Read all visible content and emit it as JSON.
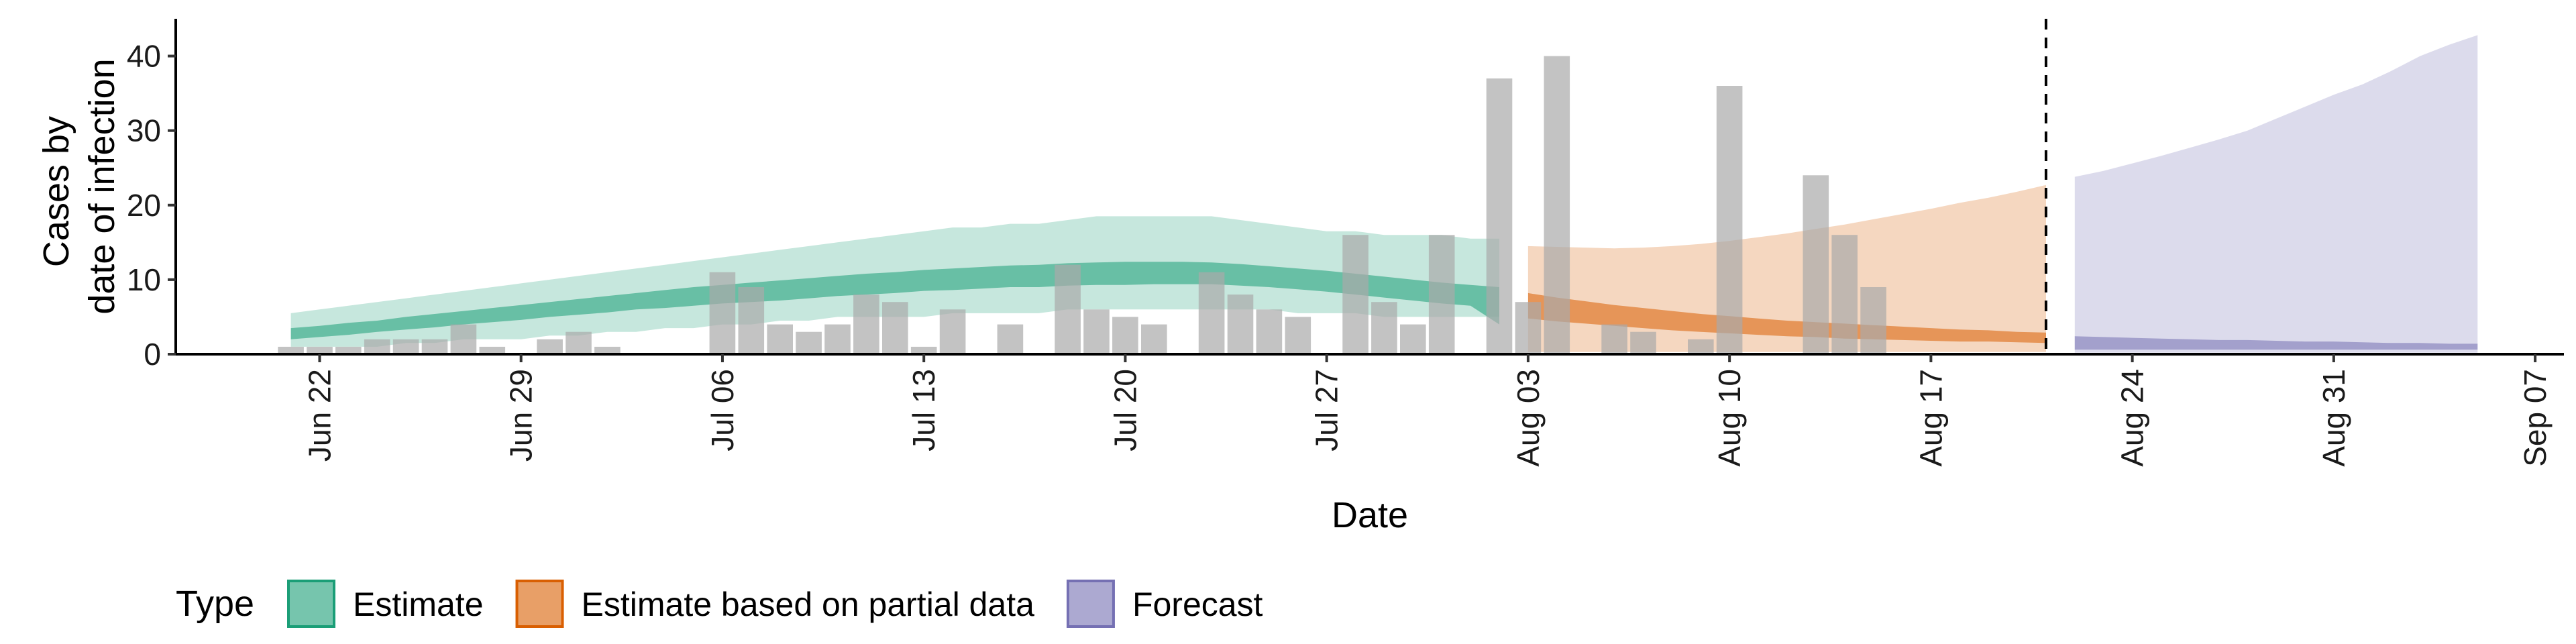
{
  "chart_data": {
    "type": "bar",
    "title": "",
    "xlabel": "Date",
    "ylabel_lines": [
      "Cases by",
      "date of infection"
    ],
    "x_start": "2020-06-17",
    "xlim": [
      "2020-06-17",
      "2020-09-08"
    ],
    "ylim": [
      0,
      45
    ],
    "y_ticks": [
      0,
      10,
      20,
      30,
      40
    ],
    "x_ticks": [
      {
        "date": "2020-06-22",
        "label": "Jun 22"
      },
      {
        "date": "2020-06-29",
        "label": "Jun 29"
      },
      {
        "date": "2020-07-06",
        "label": "Jul 06"
      },
      {
        "date": "2020-07-13",
        "label": "Jul 13"
      },
      {
        "date": "2020-07-20",
        "label": "Jul 20"
      },
      {
        "date": "2020-07-27",
        "label": "Jul 27"
      },
      {
        "date": "2020-08-03",
        "label": "Aug 03"
      },
      {
        "date": "2020-08-10",
        "label": "Aug 10"
      },
      {
        "date": "2020-08-17",
        "label": "Aug 17"
      },
      {
        "date": "2020-08-24",
        "label": "Aug 24"
      },
      {
        "date": "2020-08-31",
        "label": "Aug 31"
      },
      {
        "date": "2020-09-07",
        "label": "Sep 07"
      }
    ],
    "forecast_start": "2020-08-21",
    "reported_cases": {
      "start_date": "2020-06-21",
      "values": [
        1,
        1,
        1,
        2,
        2,
        2,
        4,
        1,
        0,
        2,
        3,
        1,
        0,
        0,
        0,
        11,
        9,
        4,
        3,
        4,
        8,
        7,
        1,
        6,
        0,
        4,
        0,
        12,
        6,
        5,
        4,
        0,
        11,
        8,
        6,
        5,
        0,
        16,
        7,
        4,
        16,
        0,
        37,
        7,
        40,
        0,
        4,
        3,
        0,
        2,
        36,
        0,
        0,
        24,
        16,
        9
      ]
    },
    "series": [
      {
        "name": "Estimate",
        "color": "#1b9e77",
        "start_date": "2020-06-21",
        "lower90": [
          1,
          1,
          1,
          1,
          1.5,
          1.5,
          2,
          2,
          2,
          2.5,
          2.5,
          3,
          3,
          3.5,
          3.5,
          4,
          4,
          4.5,
          4.5,
          5,
          5,
          5,
          5,
          5.5,
          5.5,
          5.5,
          5.5,
          6,
          6,
          6,
          6,
          6,
          6,
          6,
          6,
          5.5,
          5.5,
          5.5,
          5,
          5,
          5,
          5,
          5
        ],
        "upper90": [
          5.5,
          6,
          6.5,
          7,
          7.5,
          8,
          8.5,
          9,
          9.5,
          10,
          10.5,
          11,
          11.5,
          12,
          12.5,
          13,
          13.5,
          14,
          14.5,
          15,
          15.5,
          16,
          16.5,
          17,
          17,
          17.5,
          17.5,
          18,
          18.5,
          18.5,
          18.5,
          18.5,
          18.5,
          18,
          17.5,
          17,
          16.5,
          16.5,
          16,
          16,
          16,
          15.5,
          15.5
        ],
        "lower50": [
          2,
          2.3,
          2.6,
          3,
          3.3,
          3.6,
          4,
          4.3,
          4.6,
          5,
          5.3,
          5.6,
          6,
          6.2,
          6.5,
          6.8,
          7,
          7.2,
          7.5,
          7.8,
          8,
          8.2,
          8.5,
          8.6,
          8.8,
          9,
          9,
          9.2,
          9.3,
          9.3,
          9.4,
          9.4,
          9.4,
          9.2,
          9,
          8.7,
          8.4,
          8,
          7.6,
          7.2,
          6.8,
          6.5,
          4
        ],
        "upper50": [
          3.5,
          3.8,
          4.2,
          4.5,
          5,
          5.4,
          5.8,
          6.2,
          6.6,
          7,
          7.4,
          7.8,
          8.2,
          8.6,
          9,
          9.3,
          9.6,
          9.9,
          10.2,
          10.5,
          10.8,
          11,
          11.3,
          11.5,
          11.7,
          11.9,
          12,
          12.2,
          12.3,
          12.4,
          12.4,
          12.4,
          12.3,
          12.1,
          11.8,
          11.5,
          11.2,
          10.8,
          10.4,
          10,
          9.6,
          9.3,
          9
        ]
      },
      {
        "name": "Estimate based on partial data",
        "color": "#d95f02",
        "start_date": "2020-08-03",
        "lower90": [
          0.3,
          0.3,
          0.3,
          0.3,
          0.3,
          0.3,
          0.3,
          0.3,
          0.3,
          0.3,
          0.3,
          0.3,
          0.3,
          0.3,
          0.3,
          0.3,
          0.3,
          0.3,
          0.3
        ],
        "upper90": [
          14.5,
          14.4,
          14.3,
          14.2,
          14.3,
          14.5,
          14.8,
          15.2,
          15.7,
          16.2,
          16.8,
          17.4,
          18.1,
          18.8,
          19.5,
          20.3,
          21,
          21.8,
          22.7
        ],
        "lower50": [
          4.8,
          4.4,
          4.1,
          3.8,
          3.5,
          3.2,
          3,
          2.8,
          2.6,
          2.4,
          2.3,
          2.1,
          2,
          1.9,
          1.8,
          1.7,
          1.7,
          1.6,
          1.5
        ],
        "upper50": [
          8.2,
          7.6,
          7.1,
          6.6,
          6.2,
          5.8,
          5.4,
          5.1,
          4.8,
          4.5,
          4.3,
          4.1,
          3.9,
          3.7,
          3.5,
          3.3,
          3.2,
          3,
          2.9
        ]
      },
      {
        "name": "Forecast",
        "color": "#7570b3",
        "start_date": "2020-08-22",
        "lower90": [
          0.2,
          0.2,
          0.2,
          0.2,
          0.2,
          0.2,
          0.2,
          0.2,
          0.2,
          0.2,
          0.2,
          0.2,
          0.2,
          0.2,
          0.2
        ],
        "upper90": [
          23.8,
          24.6,
          25.6,
          26.6,
          27.7,
          28.8,
          30,
          31.6,
          33.2,
          34.8,
          36.2,
          38,
          40,
          41.5,
          42.8
        ],
        "lower50": [
          0.6,
          0.6,
          0.6,
          0.6,
          0.6,
          0.6,
          0.6,
          0.6,
          0.6,
          0.6,
          0.6,
          0.6,
          0.6,
          0.6,
          0.6
        ],
        "upper50": [
          2.4,
          2.3,
          2.2,
          2.1,
          2,
          1.9,
          1.9,
          1.8,
          1.7,
          1.7,
          1.6,
          1.5,
          1.5,
          1.4,
          1.4
        ]
      }
    ],
    "legend": {
      "title": "Type",
      "position": "bottom",
      "items": [
        {
          "label": "Estimate",
          "color": "#1b9e77"
        },
        {
          "label": "Estimate based on partial data",
          "color": "#d95f02"
        },
        {
          "label": "Forecast",
          "color": "#7570b3"
        }
      ]
    },
    "bar_color": "#a9a9a9",
    "grid": false
  }
}
